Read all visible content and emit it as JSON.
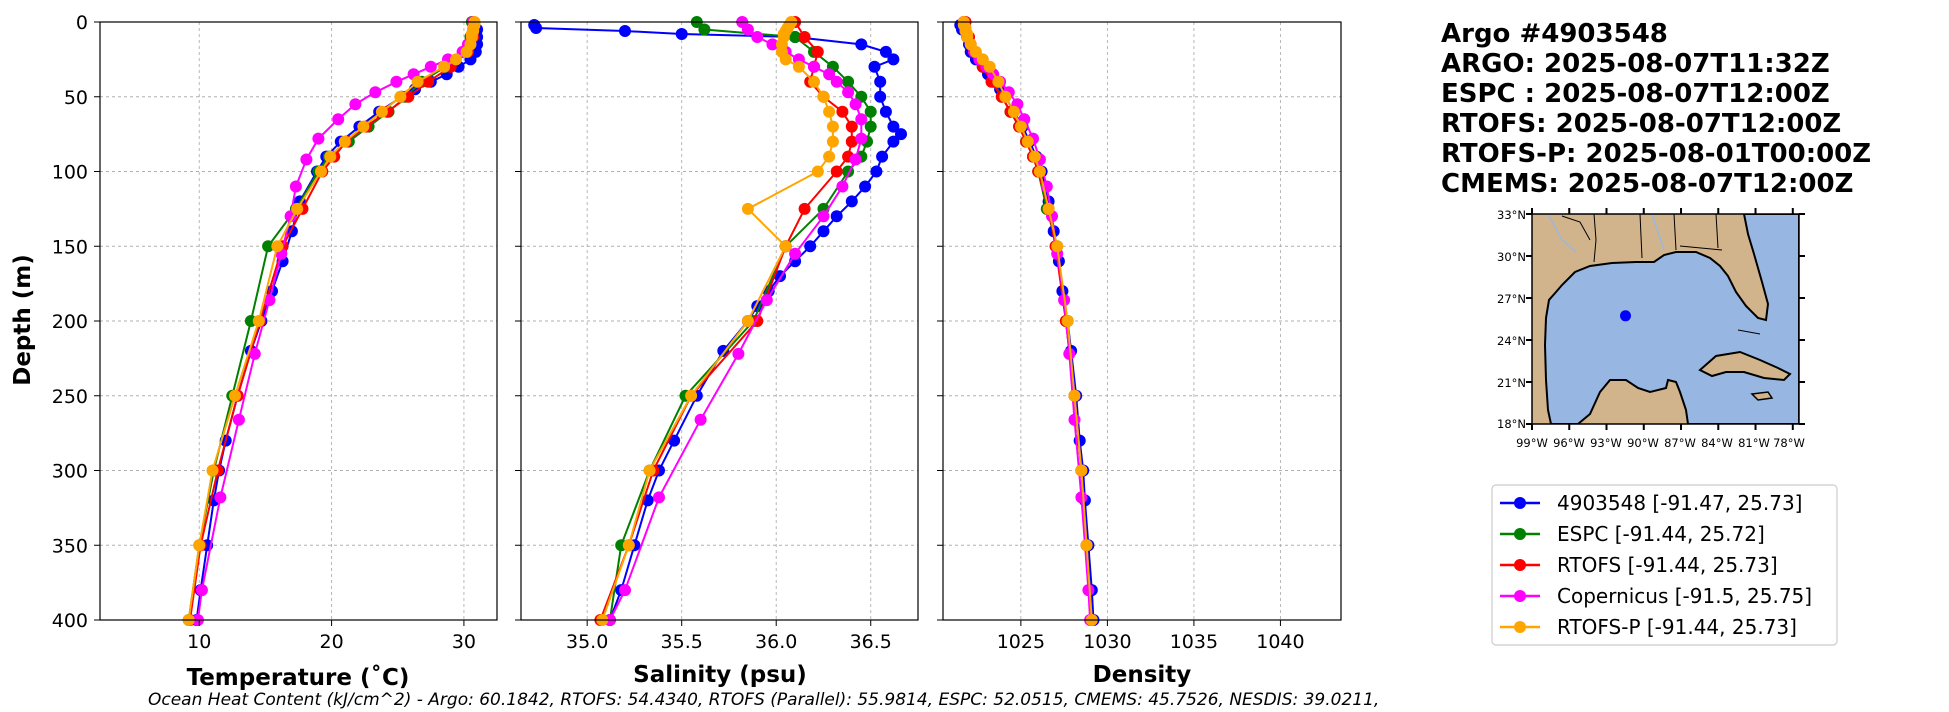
{
  "chart_data": {
    "type": "line",
    "y_label": "Depth (m)",
    "y_ticks": [
      0,
      50,
      100,
      150,
      200,
      250,
      300,
      350,
      400
    ],
    "ylim": [
      0,
      400
    ],
    "y_inverted": true,
    "grid": true,
    "series_styles": [
      {
        "name": "4903548 [-91.47, 25.73]",
        "color": "#0000ff"
      },
      {
        "name": "ESPC [-91.44, 25.72]",
        "color": "#008000"
      },
      {
        "name": "RTOFS [-91.44, 25.73]",
        "color": "#ff0000"
      },
      {
        "name": "Copernicus [-91.5, 25.75]",
        "color": "#ff00ff"
      },
      {
        "name": "RTOFS-P [-91.44, 25.73]",
        "color": "#ffa500"
      }
    ],
    "panels": [
      {
        "id": "temperature",
        "xlabel": "Temperature (˚C)",
        "xlim": [
          2.5,
          32.5
        ],
        "x_ticks": [
          10,
          20,
          30
        ],
        "series": [
          {
            "name": "4903548 [-91.47, 25.73]",
            "depth": [
              2,
              5,
              10,
              15,
              20,
              25,
              30,
              35,
              40,
              45,
              50,
              60,
              70,
              80,
              90,
              100,
              120,
              140,
              160,
              180,
              200,
              220,
              250,
              280,
              300,
              320,
              350,
              380,
              400
            ],
            "values": [
              30.8,
              31.0,
              31.0,
              31.0,
              30.9,
              30.5,
              29.6,
              28.7,
              27.5,
              26.3,
              25.3,
              23.6,
              22.1,
              20.7,
              19.6,
              18.9,
              17.6,
              17.0,
              16.3,
              15.5,
              14.7,
              13.9,
              12.9,
              12.0,
              11.5,
              11.1,
              10.6,
              10.1,
              9.8
            ]
          },
          {
            "name": "ESPC [-91.44, 25.72]",
            "depth": [
              0,
              10,
              20,
              30,
              40,
              50,
              60,
              70,
              80,
              90,
              100,
              125,
              150,
              200,
              250,
              300,
              350,
              400
            ],
            "values": [
              30.6,
              30.5,
              30.3,
              28.6,
              26.8,
              25.6,
              24.3,
              22.8,
              21.3,
              19.8,
              19.0,
              17.3,
              15.2,
              13.9,
              12.5,
              11.1,
              10.0,
              9.2
            ]
          },
          {
            "name": "RTOFS [-91.44, 25.73]",
            "depth": [
              0,
              10,
              20,
              30,
              40,
              50,
              60,
              70,
              80,
              90,
              100,
              125,
              150,
              200,
              250,
              300,
              350,
              400
            ],
            "values": [
              30.7,
              30.7,
              30.3,
              29.0,
              27.3,
              25.8,
              24.2,
              22.6,
              21.1,
              20.2,
              19.3,
              17.8,
              16.3,
              14.6,
              12.9,
              11.4,
              10.1,
              9.3
            ]
          },
          {
            "name": "Copernicus [-91.5, 25.75]",
            "depth": [
              0,
              5,
              10,
              15,
              20,
              25,
              30,
              35,
              40,
              47,
              55,
              65,
              78,
              92,
              110,
              130,
              155,
              186,
              222,
              266,
              318,
              380,
              400
            ],
            "values": [
              30.7,
              30.7,
              30.6,
              30.3,
              29.9,
              28.8,
              27.5,
              26.2,
              24.9,
              23.3,
              21.8,
              20.5,
              19.0,
              18.1,
              17.3,
              16.9,
              16.2,
              15.3,
              14.2,
              13.0,
              11.6,
              10.2,
              9.9
            ]
          },
          {
            "name": "RTOFS-P [-91.44, 25.73]",
            "depth": [
              0,
              2,
              4,
              6,
              8,
              10,
              15,
              20,
              25,
              30,
              40,
              50,
              60,
              70,
              80,
              90,
              100,
              125,
              150,
              200,
              250,
              300,
              350,
              400
            ],
            "values": [
              30.8,
              30.8,
              30.7,
              30.7,
              30.6,
              30.6,
              30.5,
              30.2,
              29.4,
              28.5,
              26.5,
              25.2,
              23.8,
              22.4,
              21.0,
              19.9,
              19.2,
              17.4,
              15.9,
              14.5,
              12.7,
              11.0,
              10.0,
              9.2
            ]
          }
        ]
      },
      {
        "id": "salinity",
        "xlabel": "Salinity (psu)",
        "xlim": [
          34.65,
          36.75
        ],
        "x_ticks": [
          35.0,
          35.5,
          36.0,
          36.5
        ],
        "tick_labels": [
          "35.0",
          "35.5",
          "36.0",
          "36.5"
        ],
        "series": [
          {
            "name": "4903548 [-91.47, 25.73]",
            "depth": [
              2,
              4,
              6,
              8,
              10,
              15,
              20,
              25,
              30,
              40,
              50,
              60,
              70,
              75,
              80,
              90,
              100,
              110,
              120,
              130,
              140,
              150,
              160,
              170,
              180,
              190,
              200,
              220,
              250,
              280,
              300,
              320,
              350,
              380,
              400
            ],
            "values": [
              34.72,
              34.73,
              35.2,
              35.5,
              36.1,
              36.45,
              36.58,
              36.62,
              36.52,
              36.55,
              36.55,
              36.58,
              36.62,
              36.66,
              36.62,
              36.56,
              36.53,
              36.47,
              36.4,
              36.32,
              36.25,
              36.18,
              36.1,
              36.02,
              35.96,
              35.9,
              35.85,
              35.72,
              35.58,
              35.46,
              35.38,
              35.32,
              35.25,
              35.18,
              35.12
            ]
          },
          {
            "name": "ESPC [-91.44, 25.72]",
            "depth": [
              0,
              5,
              10,
              20,
              30,
              40,
              50,
              60,
              70,
              80,
              90,
              100,
              125,
              150,
              200,
              250,
              300,
              350,
              400
            ],
            "values": [
              35.58,
              35.62,
              36.1,
              36.2,
              36.3,
              36.38,
              36.45,
              36.5,
              36.5,
              36.48,
              36.45,
              36.38,
              36.25,
              36.05,
              35.88,
              35.52,
              35.33,
              35.18,
              35.12
            ]
          },
          {
            "name": "RTOFS [-91.44, 25.73]",
            "depth": [
              0,
              10,
              20,
              30,
              40,
              50,
              60,
              70,
              80,
              90,
              100,
              125,
              150,
              200,
              250,
              300,
              350,
              400
            ],
            "values": [
              36.1,
              36.15,
              36.22,
              36.2,
              36.18,
              36.25,
              36.35,
              36.4,
              36.4,
              36.38,
              36.32,
              36.15,
              36.05,
              35.9,
              35.55,
              35.35,
              35.22,
              35.07
            ]
          },
          {
            "name": "Copernicus [-91.5, 25.75]",
            "depth": [
              0,
              5,
              10,
              15,
              20,
              25,
              30,
              35,
              40,
              47,
              55,
              65,
              78,
              92,
              110,
              130,
              155,
              186,
              222,
              266,
              318,
              380,
              400
            ],
            "values": [
              35.82,
              35.85,
              35.9,
              35.98,
              36.05,
              36.12,
              36.2,
              36.28,
              36.32,
              36.38,
              36.42,
              36.45,
              36.45,
              36.42,
              36.35,
              36.25,
              36.1,
              35.95,
              35.8,
              35.6,
              35.38,
              35.2,
              35.12
            ]
          },
          {
            "name": "RTOFS-P [-91.44, 25.73]",
            "depth": [
              0,
              2,
              4,
              6,
              8,
              10,
              15,
              20,
              25,
              30,
              40,
              50,
              60,
              70,
              80,
              90,
              100,
              125,
              150,
              200,
              250,
              300,
              350,
              400
            ],
            "values": [
              36.08,
              36.07,
              36.06,
              36.05,
              36.04,
              36.04,
              36.03,
              36.03,
              36.05,
              36.12,
              36.2,
              36.25,
              36.28,
              36.3,
              36.3,
              36.28,
              36.22,
              35.85,
              36.05,
              35.85,
              35.55,
              35.33,
              35.22,
              35.08
            ]
          }
        ]
      },
      {
        "id": "density",
        "xlabel": "Density",
        "xlim": [
          1020.5,
          1043.5
        ],
        "x_ticks": [
          1025,
          1030,
          1035,
          1040
        ],
        "series": [
          {
            "name": "4903548 [-91.47, 25.73]",
            "depth": [
              2,
              5,
              10,
              15,
              20,
              25,
              30,
              35,
              40,
              45,
              50,
              60,
              70,
              80,
              90,
              100,
              120,
              140,
              160,
              180,
              200,
              220,
              250,
              280,
              300,
              320,
              350,
              380,
              400
            ],
            "values": [
              1021.5,
              1021.6,
              1021.9,
              1022.0,
              1022.1,
              1022.4,
              1022.8,
              1023.1,
              1023.5,
              1023.8,
              1024.1,
              1024.6,
              1025.1,
              1025.5,
              1025.9,
              1026.2,
              1026.6,
              1026.9,
              1027.2,
              1027.4,
              1027.7,
              1027.9,
              1028.2,
              1028.4,
              1028.6,
              1028.7,
              1028.9,
              1029.1,
              1029.2
            ]
          },
          {
            "name": "ESPC [-91.44, 25.72]",
            "depth": [
              0,
              10,
              20,
              30,
              40,
              50,
              60,
              70,
              80,
              90,
              100,
              125,
              150,
              200,
              250,
              300,
              350,
              400
            ],
            "values": [
              1021.7,
              1021.9,
              1022.3,
              1022.8,
              1023.4,
              1023.9,
              1024.4,
              1024.9,
              1025.3,
              1025.7,
              1026.0,
              1026.5,
              1027.1,
              1027.6,
              1028.1,
              1028.5,
              1028.8,
              1029.1
            ]
          },
          {
            "name": "RTOFS [-91.44, 25.73]",
            "depth": [
              0,
              10,
              20,
              30,
              40,
              50,
              60,
              70,
              80,
              90,
              100,
              125,
              150,
              200,
              250,
              300,
              350,
              400
            ],
            "values": [
              1021.8,
              1022.0,
              1022.3,
              1022.8,
              1023.3,
              1023.9,
              1024.4,
              1024.9,
              1025.3,
              1025.7,
              1026.0,
              1026.6,
              1027.0,
              1027.6,
              1028.1,
              1028.5,
              1028.8,
              1029.1
            ]
          },
          {
            "name": "Copernicus [-91.5, 25.75]",
            "depth": [
              0,
              5,
              10,
              15,
              20,
              25,
              30,
              35,
              40,
              47,
              55,
              65,
              78,
              92,
              110,
              130,
              155,
              186,
              222,
              266,
              318,
              380,
              400
            ],
            "values": [
              1021.7,
              1021.8,
              1021.9,
              1022.1,
              1022.3,
              1022.6,
              1023.0,
              1023.4,
              1023.8,
              1024.3,
              1024.8,
              1025.2,
              1025.7,
              1026.1,
              1026.5,
              1026.8,
              1027.1,
              1027.5,
              1027.8,
              1028.1,
              1028.5,
              1028.9,
              1029.0
            ]
          },
          {
            "name": "RTOFS-P [-91.44, 25.73]",
            "depth": [
              0,
              2,
              4,
              6,
              8,
              10,
              15,
              20,
              25,
              30,
              40,
              50,
              60,
              70,
              80,
              90,
              100,
              125,
              150,
              200,
              250,
              300,
              350,
              400
            ],
            "values": [
              1021.7,
              1021.7,
              1021.8,
              1021.8,
              1021.9,
              1021.9,
              1022.1,
              1022.4,
              1022.8,
              1023.2,
              1023.7,
              1024.1,
              1024.6,
              1025.0,
              1025.4,
              1025.8,
              1026.1,
              1026.6,
              1027.1,
              1027.7,
              1028.1,
              1028.5,
              1028.8,
              1029.1
            ]
          }
        ]
      }
    ]
  },
  "header": {
    "lines": [
      "Argo #4903548",
      "ARGO: 2025-08-07T11:32Z",
      "ESPC : 2025-08-07T12:00Z",
      "RTOFS: 2025-08-07T12:00Z",
      "RTOFS-P: 2025-08-01T00:00Z",
      "CMEMS: 2025-08-07T12:00Z"
    ]
  },
  "inset_map": {
    "lat_labels": [
      "33°N",
      "30°N",
      "27°N",
      "24°N",
      "21°N",
      "18°N"
    ],
    "lon_labels": [
      "99°W",
      "96°W",
      "93°W",
      "90°W",
      "87°W",
      "84°W",
      "81°W",
      "78°W"
    ],
    "float_location": {
      "lon": -91.47,
      "lat": 25.73
    },
    "land_color": "#d2b48c",
    "water_color": "#97b6e1",
    "float_color": "#0000ff"
  },
  "legend": {
    "entries": [
      "4903548 [-91.47, 25.73]",
      "ESPC [-91.44, 25.72]",
      "RTOFS [-91.44, 25.73]",
      "Copernicus [-91.5, 25.75]",
      "RTOFS-P [-91.44, 25.73]"
    ]
  },
  "footer": {
    "text": "Ocean Heat Content (kJ/cm^2) - Argo: 60.1842,  RTOFS: 54.4340,  RTOFS (Parallel): 55.9814,  ESPC: 52.0515,  CMEMS: 45.7526,  NESDIS: 39.0211,"
  }
}
